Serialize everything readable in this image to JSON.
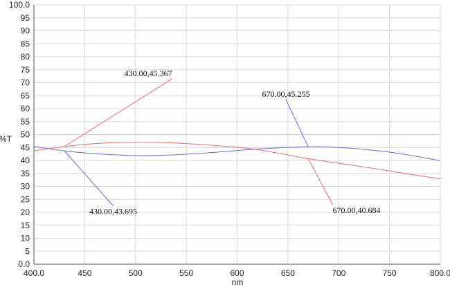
{
  "chart_data": {
    "type": "line",
    "xlabel": "nm",
    "ylabel": "%T",
    "xlim": [
      400,
      800
    ],
    "ylim": [
      0,
      100
    ],
    "x_ticks": [
      400,
      450,
      500,
      550,
      600,
      650,
      700,
      750,
      800
    ],
    "x_tick_labels": [
      "400.0",
      "450",
      "500",
      "550",
      "600",
      "650",
      "700",
      "750",
      "800.0"
    ],
    "y_ticks": [
      0,
      5,
      10,
      15,
      20,
      25,
      30,
      35,
      40,
      45,
      50,
      55,
      60,
      65,
      70,
      75,
      80,
      85,
      90,
      95,
      100
    ],
    "y_tick_labels": [
      "0.0",
      "5",
      "10",
      "15",
      "20",
      "25",
      "30",
      "35",
      "40",
      "45",
      "50",
      "55",
      "60",
      "65",
      "70",
      "75",
      "80",
      "85",
      "90",
      "95",
      "100.0"
    ],
    "grid": true,
    "series": [
      {
        "color": "#ee6a6a",
        "x": [
          400,
          430,
          460,
          500,
          540,
          580,
          620,
          670,
          720,
          760,
          800
        ],
        "y": [
          43.7,
          45.37,
          46.5,
          47.0,
          46.7,
          45.7,
          44.2,
          40.68,
          37.8,
          35.3,
          32.9
        ]
      },
      {
        "color": "#6a6ae0",
        "x": [
          400,
          430,
          460,
          500,
          540,
          580,
          620,
          670,
          700,
          740,
          770,
          800
        ],
        "y": [
          45.4,
          43.7,
          42.6,
          41.9,
          42.2,
          43.2,
          44.4,
          45.26,
          45.0,
          43.7,
          42.0,
          39.9
        ]
      }
    ],
    "annotations": [
      {
        "label": "430.00,45.367",
        "x": 430,
        "y": 45.367,
        "color": "#ee6a6a",
        "label_at": [
          536,
          71.5
        ],
        "anchor": "end"
      },
      {
        "label": "430.00,43.695",
        "x": 430,
        "y": 43.695,
        "color": "#6a6ae0",
        "label_at": [
          478,
          22.5
        ],
        "anchor": "middle"
      },
      {
        "label": "670.00,45.255",
        "x": 670,
        "y": 45.255,
        "color": "#6a6ae0",
        "label_at": [
          648,
          63.5
        ],
        "anchor": "middle"
      },
      {
        "label": "670.00,40.684",
        "x": 670,
        "y": 40.684,
        "color": "#ee6a6a",
        "label_at": [
          694,
          23
        ],
        "anchor": "start"
      }
    ]
  }
}
